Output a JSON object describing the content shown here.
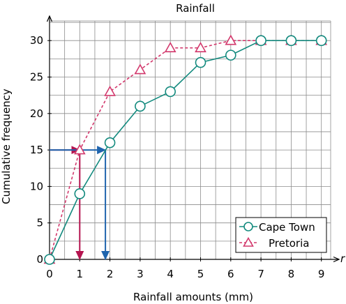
{
  "chart_data": {
    "type": "line",
    "title": "Rainfall",
    "xlabel": "Rainfall amounts (mm)",
    "ylabel": "Cumulative frequency",
    "x_axis_end_label": "r",
    "xlim": [
      0,
      9
    ],
    "ylim": [
      0,
      30
    ],
    "x_ticks": [
      "0",
      "1",
      "2",
      "3",
      "4",
      "5",
      "6",
      "7",
      "8",
      "9"
    ],
    "y_ticks": [
      "0",
      "5",
      "10",
      "15",
      "20",
      "25",
      "30"
    ],
    "grid": true,
    "legend_position": "bottom-right",
    "x": [
      0,
      1,
      2,
      3,
      4,
      5,
      6,
      7,
      8,
      9
    ],
    "series": [
      {
        "name": "Cape Town",
        "marker": "circle",
        "line": "solid",
        "color": "#138a7e",
        "values": [
          0,
          9,
          16,
          21,
          23,
          27,
          28,
          30,
          30,
          30
        ]
      },
      {
        "name": "Pretoria",
        "marker": "triangle",
        "line": "dashed",
        "color": "#d2386c",
        "values": [
          0,
          15,
          23,
          26,
          29,
          29,
          30,
          30,
          30,
          30
        ]
      }
    ],
    "annotations": [
      {
        "series": "Pretoria",
        "cumulative_frequency": 15,
        "reads_x": 1,
        "color": "#b4144f"
      },
      {
        "series": "Cape Town",
        "cumulative_frequency": 15,
        "reads_x": 1.85,
        "color": "#1f64ad"
      }
    ]
  }
}
